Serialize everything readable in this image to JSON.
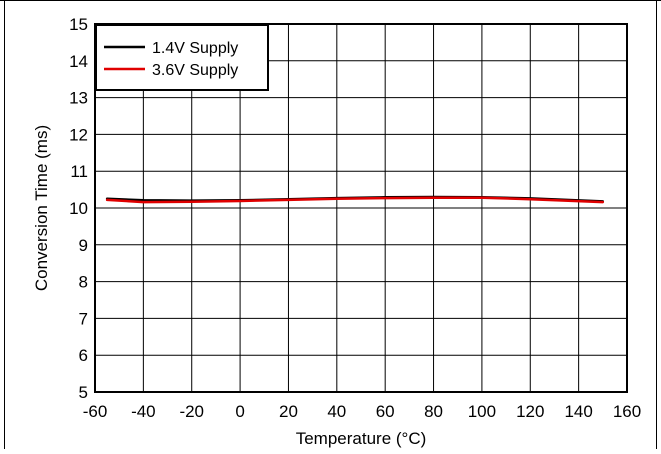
{
  "chart_data": {
    "type": "line",
    "xlabel": "Temperature (°C)",
    "ylabel": "Conversion Time (ms)",
    "xlim": [
      -60,
      160
    ],
    "ylim": [
      5,
      15
    ],
    "xticks": [
      -60,
      -40,
      -20,
      0,
      20,
      40,
      60,
      80,
      100,
      120,
      140,
      160
    ],
    "yticks": [
      5,
      6,
      7,
      8,
      9,
      10,
      11,
      12,
      13,
      14,
      15
    ],
    "grid": true,
    "legend_position": "top-left",
    "series": [
      {
        "name": "1.4V Supply",
        "color": "#000000",
        "x": [
          -55,
          -40,
          -20,
          0,
          20,
          40,
          60,
          80,
          100,
          120,
          150
        ],
        "y": [
          10.25,
          10.21,
          10.2,
          10.21,
          10.24,
          10.27,
          10.29,
          10.3,
          10.29,
          10.26,
          10.18
        ]
      },
      {
        "name": "3.6V Supply",
        "color": "#e00000",
        "x": [
          -55,
          -40,
          -20,
          0,
          20,
          40,
          60,
          80,
          100,
          120,
          150
        ],
        "y": [
          10.22,
          10.16,
          10.17,
          10.19,
          10.22,
          10.25,
          10.27,
          10.28,
          10.28,
          10.24,
          10.16
        ]
      }
    ]
  }
}
